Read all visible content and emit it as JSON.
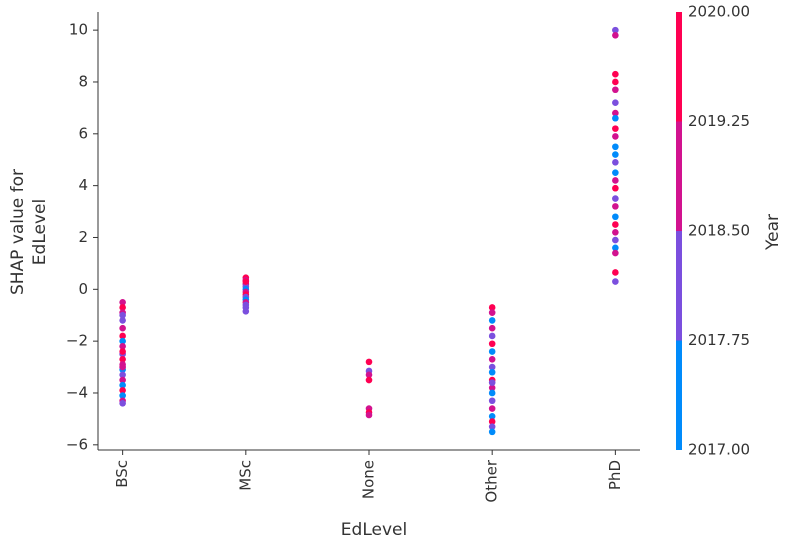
{
  "chart_data": {
    "type": "scatter",
    "x_label": "EdLevel",
    "y_label": [
      "SHAP value for",
      "EdLevel"
    ],
    "colorbar_label": "Year",
    "categories": [
      "BSc",
      "MSc",
      "None",
      "Other",
      "PhD"
    ],
    "ylim": [
      -6.2,
      10.7
    ],
    "yticks": [
      {
        "value": -6,
        "label": "−6"
      },
      {
        "value": -4,
        "label": "−4"
      },
      {
        "value": -2,
        "label": "−2"
      },
      0,
      2,
      4,
      6,
      8,
      10
    ],
    "color_scale": [
      "#008bfb",
      "#7b4fde",
      "#d2128f",
      "#ff0052"
    ],
    "clim": [
      2017,
      2020
    ],
    "cticks": [
      {
        "value": 2017,
        "label": "2017.00"
      },
      {
        "value": 2017.75,
        "label": "2017.75"
      },
      {
        "value": 2018.5,
        "label": "2018.50"
      },
      {
        "value": 2019.25,
        "label": "2019.25"
      },
      {
        "value": 2020,
        "label": "2020.00"
      }
    ],
    "points": {
      "x": [
        "BSc",
        "BSc",
        "BSc",
        "BSc",
        "BSc",
        "BSc",
        "BSc",
        "BSc",
        "BSc",
        "BSc",
        "BSc",
        "BSc",
        "BSc",
        "BSc",
        "BSc",
        "BSc",
        "BSc",
        "BSc",
        "BSc",
        "BSc",
        "BSc",
        "BSc",
        "MSc",
        "MSc",
        "MSc",
        "MSc",
        "MSc",
        "MSc",
        "MSc",
        "MSc",
        "MSc",
        "MSc",
        "MSc",
        "MSc",
        "MSc",
        "MSc",
        "None",
        "None",
        "None",
        "None",
        "None",
        "None",
        "None",
        "Other",
        "Other",
        "Other",
        "Other",
        "Other",
        "Other",
        "Other",
        "Other",
        "Other",
        "Other",
        "Other",
        "Other",
        "Other",
        "Other",
        "Other",
        "Other",
        "Other",
        "Other",
        "Other",
        "Other",
        "PhD",
        "PhD",
        "PhD",
        "PhD",
        "PhD",
        "PhD",
        "PhD",
        "PhD",
        "PhD",
        "PhD",
        "PhD",
        "PhD",
        "PhD",
        "PhD",
        "PhD",
        "PhD",
        "PhD",
        "PhD",
        "PhD",
        "PhD",
        "PhD",
        "PhD",
        "PhD",
        "PhD",
        "PhD",
        "PhD"
      ],
      "y": [
        -0.5,
        -0.7,
        -0.9,
        -1.2,
        -1.5,
        -1.8,
        -2.0,
        -2.2,
        -2.5,
        -2.7,
        -2.9,
        -3.1,
        -3.3,
        -3.5,
        -3.7,
        -3.9,
        -4.1,
        -4.3,
        -4.4,
        -2.4,
        -3.0,
        -1.0,
        0.45,
        0.35,
        0.2,
        0.1,
        0,
        -0.1,
        -0.2,
        -0.3,
        -0.4,
        -0.5,
        -0.6,
        -0.7,
        -0.85,
        0.3,
        -2.8,
        -3.15,
        -3.3,
        -3.5,
        -4.6,
        -4.75,
        -4.85,
        -0.7,
        -0.9,
        -1.2,
        -1.5,
        -1.8,
        -2.1,
        -2.4,
        -2.7,
        -3.0,
        -3.2,
        -3.5,
        -3.8,
        -4.0,
        -4.3,
        -4.6,
        -4.9,
        -5.1,
        -5.3,
        -5.5,
        -3.6,
        10.0,
        9.8,
        8.3,
        8.0,
        7.7,
        7.2,
        6.8,
        6.6,
        6.2,
        5.9,
        5.5,
        5.2,
        4.9,
        4.5,
        4.2,
        3.9,
        3.5,
        3.2,
        2.8,
        2.5,
        2.2,
        1.9,
        1.6,
        1.4,
        0.65,
        0.3
      ],
      "year": [
        2019,
        2020,
        2019,
        2018,
        2019,
        2020,
        2017,
        2019,
        2018,
        2020,
        2019,
        2017,
        2018,
        2019,
        2017,
        2020,
        2017,
        2019,
        2018,
        2020,
        2019,
        2018,
        2020,
        2019,
        2019,
        2018,
        2017,
        2019,
        2020,
        2018,
        2017,
        2019,
        2018,
        2018,
        2018,
        2020,
        2020,
        2018,
        2019,
        2020,
        2019,
        2020,
        2019,
        2020,
        2019,
        2017,
        2019,
        2018,
        2020,
        2017,
        2019,
        2018,
        2017,
        2020,
        2019,
        2017,
        2018,
        2019,
        2017,
        2020,
        2018,
        2017,
        2018,
        2018,
        2019,
        2020,
        2020,
        2019,
        2018,
        2019,
        2017,
        2020,
        2019,
        2017,
        2017,
        2018,
        2017,
        2019,
        2020,
        2018,
        2019,
        2017,
        2020,
        2019,
        2018,
        2017,
        2019,
        2020,
        2018
      ]
    }
  }
}
